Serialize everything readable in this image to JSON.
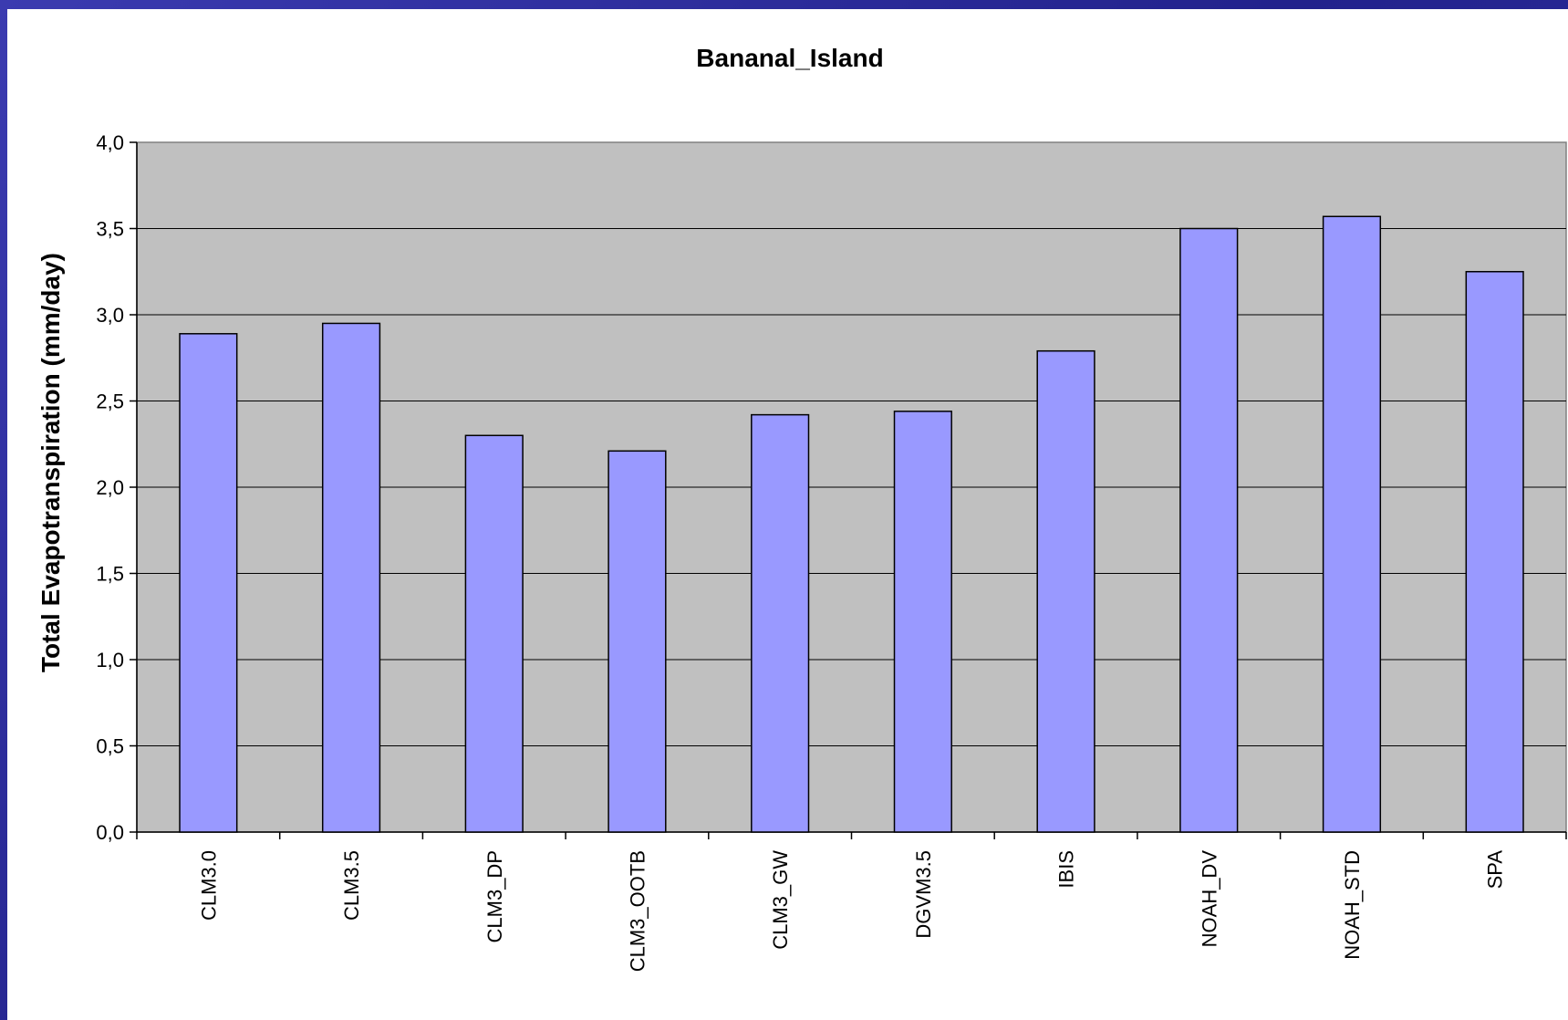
{
  "chart_data": {
    "type": "bar",
    "title": "Bananal_Island",
    "xlabel": "",
    "ylabel": "Total Evapotranspiration (mm/day)",
    "categories": [
      "CLM3.0",
      "CLM3.5",
      "CLM3_DP",
      "CLM3_OOTB",
      "CLM3_GW",
      "DGVM3.5",
      "IBIS",
      "NOAH_DV",
      "NOAH_STD",
      "SPA"
    ],
    "values": [
      2.89,
      2.95,
      2.3,
      2.21,
      2.42,
      2.44,
      2.79,
      3.5,
      3.57,
      3.25
    ],
    "ylim": [
      0,
      4.0
    ],
    "yticks": [
      "0,0",
      "0,5",
      "1,0",
      "1,5",
      "2,0",
      "2,5",
      "3,0",
      "3,5",
      "4,0"
    ],
    "grid": true,
    "colors": {
      "bar": "#9999ff",
      "plot_background": "#c0c0c0",
      "border": "#000000"
    }
  }
}
